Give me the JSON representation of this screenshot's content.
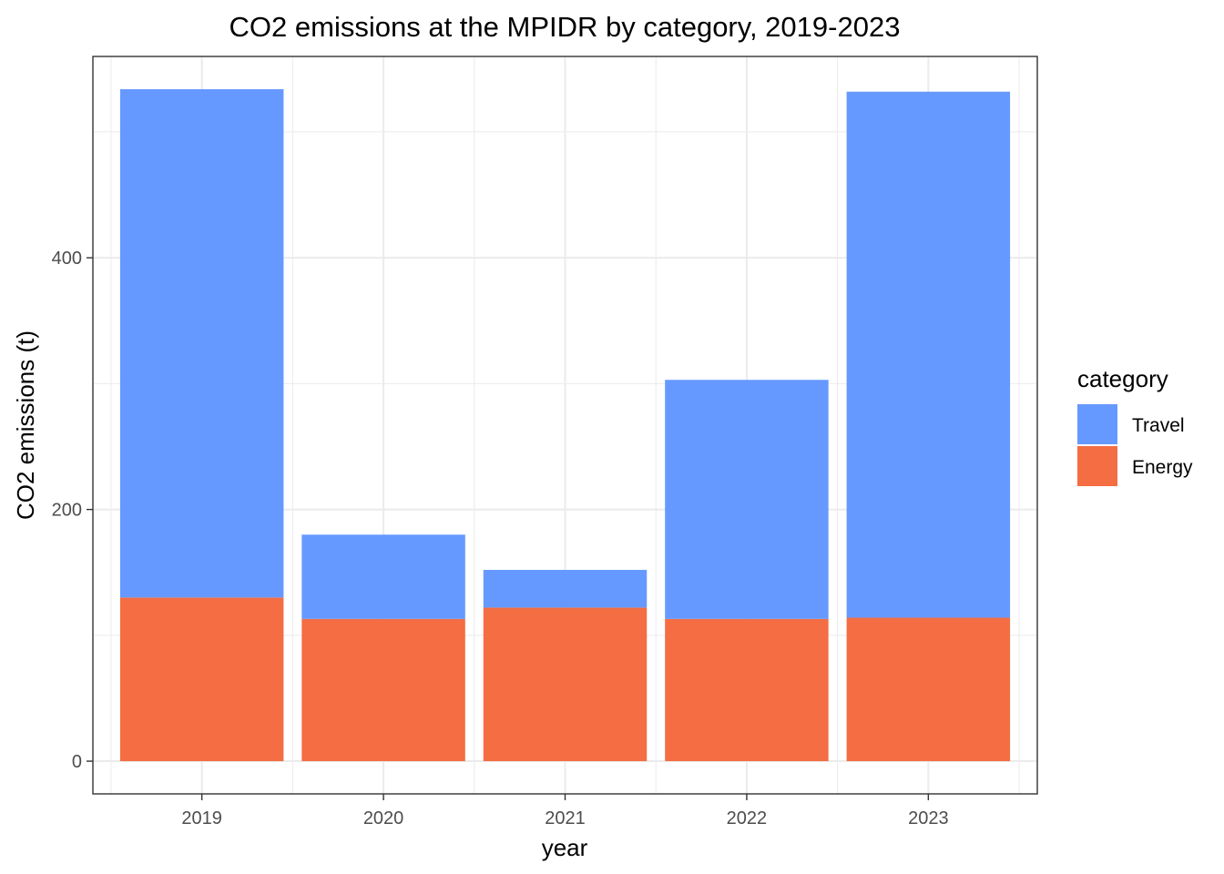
{
  "chart_data": {
    "type": "bar",
    "stacked": true,
    "title": "CO2 emissions at the MPIDR by category, 2019-2023",
    "xlabel": "year",
    "ylabel": "CO2 emissions (t)",
    "categories": [
      "2019",
      "2020",
      "2021",
      "2022",
      "2023"
    ],
    "series": [
      {
        "name": "Energy",
        "color": "#F46D43",
        "values": [
          130,
          113,
          122,
          113,
          114
        ]
      },
      {
        "name": "Travel",
        "color": "#6699FF",
        "values": [
          404,
          67,
          30,
          190,
          418
        ]
      }
    ],
    "ylim": [
      -26,
      560
    ],
    "yticks": [
      0,
      200,
      400
    ],
    "yminor": [
      100,
      300,
      500
    ],
    "grid": true,
    "legend": {
      "title": "category",
      "placement": "right",
      "items": [
        "Travel",
        "Energy"
      ]
    }
  }
}
